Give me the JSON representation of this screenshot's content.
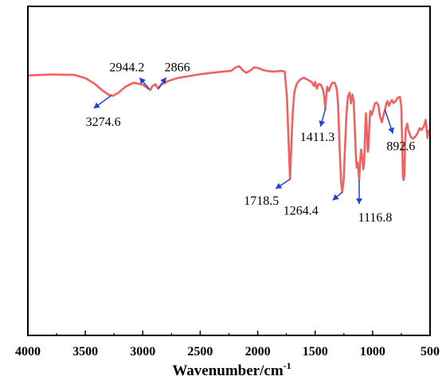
{
  "chart_data": {
    "type": "line",
    "xlabel": "Wavenumber/cm",
    "xlabel_superscript": "-1",
    "ylabel": "",
    "xlim": [
      4000,
      500
    ],
    "x_reversed": true,
    "y_ticks_shown": false,
    "grid": false,
    "legend": "none",
    "x_ticks": [
      {
        "value": 4000,
        "label": "4000"
      },
      {
        "value": 3500,
        "label": "3500"
      },
      {
        "value": 3000,
        "label": "3000"
      },
      {
        "value": 2500,
        "label": "2500"
      },
      {
        "value": 2000,
        "label": "2000"
      },
      {
        "value": 1500,
        "label": "1500"
      },
      {
        "value": 1000,
        "label": "1000"
      },
      {
        "value": 500,
        "label": "500"
      }
    ],
    "ylim": [
      0,
      100
    ],
    "series": [
      {
        "color": "#f06262",
        "points": [
          [
            4000,
            79
          ],
          [
            3800,
            79.3
          ],
          [
            3600,
            79.2
          ],
          [
            3500,
            78.2
          ],
          [
            3420,
            76.5
          ],
          [
            3350,
            74.4
          ],
          [
            3300,
            73.2
          ],
          [
            3260,
            72.8
          ],
          [
            3210,
            73.8
          ],
          [
            3150,
            75.6
          ],
          [
            3080,
            76.8
          ],
          [
            3000,
            76.2
          ],
          [
            2960,
            75.2
          ],
          [
            2935,
            74.6
          ],
          [
            2915,
            75.8
          ],
          [
            2890,
            76.3
          ],
          [
            2866,
            75.0
          ],
          [
            2840,
            76.2
          ],
          [
            2780,
            77.3
          ],
          [
            2700,
            78.2
          ],
          [
            2600,
            78.8
          ],
          [
            2500,
            79.4
          ],
          [
            2400,
            79.8
          ],
          [
            2300,
            80.2
          ],
          [
            2230,
            80.4
          ],
          [
            2190,
            81.5
          ],
          [
            2160,
            81.8
          ],
          [
            2130,
            80.6
          ],
          [
            2100,
            79.8
          ],
          [
            2060,
            80.6
          ],
          [
            2030,
            81.5
          ],
          [
            1990,
            81.2
          ],
          [
            1950,
            80.6
          ],
          [
            1900,
            80.3
          ],
          [
            1850,
            80.2
          ],
          [
            1800,
            80.4
          ],
          [
            1765,
            80.2
          ],
          [
            1745,
            72
          ],
          [
            1730,
            58
          ],
          [
            1718.5,
            47.5
          ],
          [
            1708,
            57
          ],
          [
            1695,
            68
          ],
          [
            1680,
            74
          ],
          [
            1660,
            76.5
          ],
          [
            1630,
            77.8
          ],
          [
            1600,
            78.3
          ],
          [
            1560,
            77.6
          ],
          [
            1530,
            77.0
          ],
          [
            1510,
            75.8
          ],
          [
            1500,
            77.0
          ],
          [
            1485,
            75.0
          ],
          [
            1470,
            76.4
          ],
          [
            1450,
            76.2
          ],
          [
            1430,
            74.5
          ],
          [
            1420,
            72.2
          ],
          [
            1411.3,
            68.8
          ],
          [
            1404,
            72.5
          ],
          [
            1395,
            75.6
          ],
          [
            1380,
            74.3
          ],
          [
            1365,
            75.8
          ],
          [
            1350,
            76.8
          ],
          [
            1330,
            76.8
          ],
          [
            1312,
            75.0
          ],
          [
            1300,
            70
          ],
          [
            1288,
            58
          ],
          [
            1275,
            47
          ],
          [
            1264.4,
            43.5
          ],
          [
            1252,
            47
          ],
          [
            1240,
            57
          ],
          [
            1228,
            67
          ],
          [
            1215,
            72.5
          ],
          [
            1200,
            73.8
          ],
          [
            1188,
            70.5
          ],
          [
            1176,
            73.2
          ],
          [
            1165,
            71.2
          ],
          [
            1155,
            63
          ],
          [
            1146,
            55
          ],
          [
            1138,
            51
          ],
          [
            1130,
            52.5
          ],
          [
            1123,
            49.8
          ],
          [
            1116.8,
            47.2
          ],
          [
            1110,
            52
          ],
          [
            1100,
            56.5
          ],
          [
            1090,
            54
          ],
          [
            1080,
            50.5
          ],
          [
            1073,
            52.5
          ],
          [
            1065,
            62
          ],
          [
            1058,
            67.5
          ],
          [
            1050,
            62.5
          ],
          [
            1042,
            55.8
          ],
          [
            1035,
            57
          ],
          [
            1028,
            64
          ],
          [
            1020,
            68.2
          ],
          [
            1008,
            67
          ],
          [
            995,
            68.5
          ],
          [
            980,
            70.5
          ],
          [
            965,
            70.8
          ],
          [
            950,
            70
          ],
          [
            935,
            66.5
          ],
          [
            920,
            64.8
          ],
          [
            905,
            67
          ],
          [
            892.6,
            68.6
          ],
          [
            880,
            70.5
          ],
          [
            870,
            71.2
          ],
          [
            858,
            69.8
          ],
          [
            845,
            70.8
          ],
          [
            832,
            71.5
          ],
          [
            818,
            70.6
          ],
          [
            800,
            71.2
          ],
          [
            780,
            72.3
          ],
          [
            762,
            72.5
          ],
          [
            750,
            69.5
          ],
          [
            742,
            58
          ],
          [
            736,
            48.5
          ],
          [
            730,
            47.2
          ],
          [
            724,
            48.5
          ],
          [
            718,
            57
          ],
          [
            712,
            62.5
          ],
          [
            705,
            63.6
          ],
          [
            698,
            64.3
          ],
          [
            690,
            62.5
          ],
          [
            680,
            61.5
          ],
          [
            665,
            60.2
          ],
          [
            650,
            59.8
          ],
          [
            635,
            60.2
          ],
          [
            620,
            60.8
          ],
          [
            605,
            61.8
          ],
          [
            590,
            63
          ],
          [
            575,
            62.4
          ],
          [
            560,
            63.2
          ],
          [
            548,
            64.2
          ],
          [
            538,
            65.5
          ],
          [
            530,
            62.5
          ],
          [
            522,
            60
          ],
          [
            515,
            61.5
          ],
          [
            508,
            62.4
          ],
          [
            500,
            62
          ]
        ]
      }
    ],
    "annotations": [
      {
        "text": "3274.6",
        "x": 3274.6,
        "y": 72.9,
        "label_pos": "below-left"
      },
      {
        "text": "2944.2",
        "x": 2944.2,
        "y": 74.9,
        "label_pos": "above-left"
      },
      {
        "text": "2866",
        "x": 2866,
        "y": 75.0,
        "label_pos": "above-right"
      },
      {
        "text": "1718.5",
        "x": 1718.5,
        "y": 47.5,
        "label_pos": "below-left"
      },
      {
        "text": "1411.3",
        "x": 1411.3,
        "y": 68.8,
        "label_pos": "below"
      },
      {
        "text": "1264.4",
        "x": 1264.4,
        "y": 43.5,
        "label_pos": "below-left"
      },
      {
        "text": "1116.8",
        "x": 1116.8,
        "y": 47.2,
        "label_pos": "below-right"
      },
      {
        "text": "892.6",
        "x": 892.6,
        "y": 68.6,
        "label_pos": "below-right"
      }
    ],
    "colors": {
      "line": "#f06262",
      "arrow": "#1f3fd8",
      "axis": "#000000"
    }
  }
}
